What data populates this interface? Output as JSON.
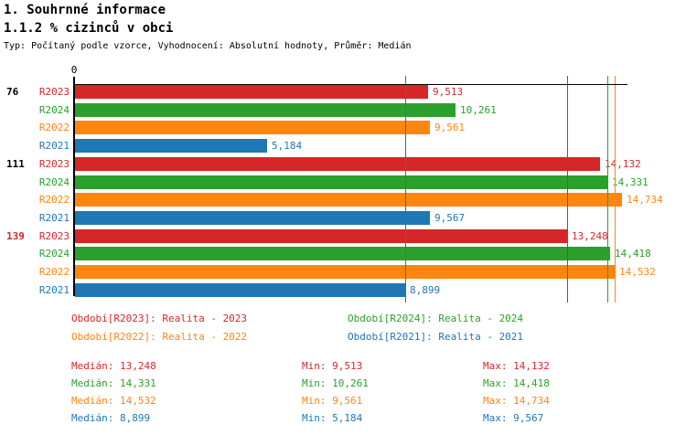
{
  "header": {
    "title1": "1. Souhrnné informace",
    "title2": "1.1.2 % cizinců v obci",
    "subtitle": "Typ: Počítaný podle vzorce, Vyhodnocení: Absolutní hodnoty, Průměr: Medián"
  },
  "chart_data": {
    "type": "bar",
    "orientation": "horizontal",
    "title": "1.1.2 % cizinců v obci",
    "zero_label": "0",
    "xlim": [
      0,
      14880
    ],
    "grid": false,
    "series_colors": {
      "R2023": "#d62728",
      "R2024": "#2ca02c",
      "R2022": "#ff860e",
      "R2021": "#1f77b4"
    },
    "axis_color": "#000000",
    "groups": [
      {
        "label": "76",
        "label_color": "#000000",
        "rows": [
          {
            "series": "R2023",
            "value": 9513,
            "display": "9,513"
          },
          {
            "series": "R2024",
            "value": 10261,
            "display": "10,261"
          },
          {
            "series": "R2022",
            "value": 9561,
            "display": "9,561"
          },
          {
            "series": "R2021",
            "value": 5184,
            "display": "5,184"
          }
        ]
      },
      {
        "label": "111",
        "label_color": "#000000",
        "rows": [
          {
            "series": "R2023",
            "value": 14132,
            "display": "14,132"
          },
          {
            "series": "R2024",
            "value": 14331,
            "display": "14,331"
          },
          {
            "series": "R2022",
            "value": 14734,
            "display": "14,734"
          },
          {
            "series": "R2021",
            "value": 9567,
            "display": "9,567"
          }
        ]
      },
      {
        "label": "139",
        "label_color": "#d62728",
        "rows": [
          {
            "series": "R2023",
            "value": 13248,
            "display": "13,248"
          },
          {
            "series": "R2024",
            "value": 14418,
            "display": "14,418"
          },
          {
            "series": "R2022",
            "value": 14532,
            "display": "14,532"
          },
          {
            "series": "R2021",
            "value": 8899,
            "display": "8,899"
          }
        ]
      }
    ],
    "median_lines": [
      {
        "series": "R2021",
        "value": 8899
      },
      {
        "series": "R2023",
        "value": 13248
      },
      {
        "series": "R2024",
        "value": 14331
      },
      {
        "series": "R2022",
        "value": 14532
      }
    ]
  },
  "legend": {
    "rows": [
      [
        {
          "series": "R2023",
          "text": "Období[R2023]: Realita - 2023"
        },
        {
          "series": "R2024",
          "text": "Období[R2024]: Realita - 2024"
        }
      ],
      [
        {
          "series": "R2022",
          "text": "Období[R2022]: Realita - 2022"
        },
        {
          "series": "R2021",
          "text": "Období[R2021]: Realita - 2021"
        }
      ]
    ]
  },
  "stats": {
    "rows": [
      {
        "series": "R2023",
        "median": "Medián: 13,248",
        "min": "Min: 9,513",
        "max": "Max: 14,132"
      },
      {
        "series": "R2024",
        "median": "Medián: 14,331",
        "min": "Min: 10,261",
        "max": "Max: 14,418"
      },
      {
        "series": "R2022",
        "median": "Medián: 14,532",
        "min": "Min: 9,561",
        "max": "Max: 14,734"
      },
      {
        "series": "R2021",
        "median": "Medián: 8,899",
        "min": "Min: 5,184",
        "max": "Max: 9,567"
      }
    ]
  }
}
